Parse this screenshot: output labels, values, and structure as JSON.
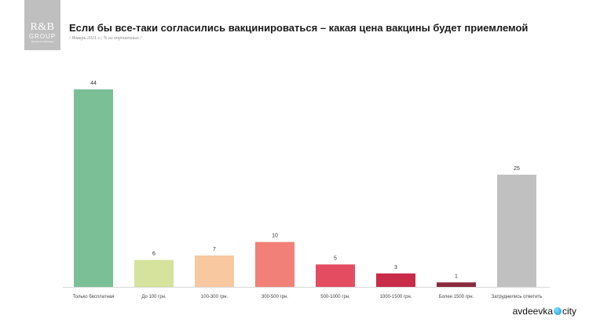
{
  "logo": {
    "line1": "R&B",
    "line2": "GROUP",
    "line3": "Research & Branding"
  },
  "title": "Если бы все-таки согласились вакцинироваться – какая цена вакцины будет приемлемой",
  "subtitle": "/ Январь 2021 г.; % из опрошенных /",
  "brand": {
    "prefix": "avdeevka",
    "suffix": "city"
  },
  "chart_data": {
    "type": "bar",
    "categories": [
      "Только бесплатная",
      "До 100 грн.",
      "100-300 грн.",
      "300-500 грн.",
      "500-1000 грн.",
      "1000-1500 грн.",
      "Более 1500 грн.",
      "Затруднились ответить"
    ],
    "values": [
      44,
      6,
      7,
      10,
      5,
      3,
      1,
      25
    ],
    "colors": [
      "#7bbf97",
      "#d5e39c",
      "#f8c8a0",
      "#f08078",
      "#e44d61",
      "#c82c48",
      "#8a2a3a",
      "#c0c0c0"
    ],
    "ylim": [
      0,
      44
    ],
    "grid": false,
    "data_labels": true
  }
}
